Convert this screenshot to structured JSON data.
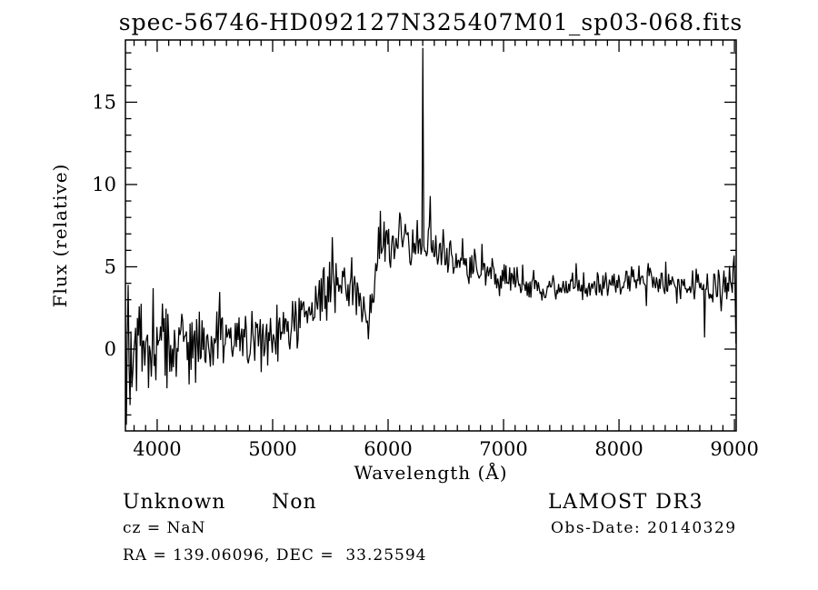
{
  "window": {
    "background_color": "#ffffff",
    "foreground_color": "#000000"
  },
  "footer": {
    "class_label": "Unknown",
    "subclass_label": "Non",
    "cz_value": "cz = NaN",
    "radec_value": "RA = 139.06096, DEC =  33.25594",
    "survey_label": "LAMOST DR3",
    "obs_date_value": "Obs-Date: 20140329"
  },
  "chart_data": {
    "type": "line",
    "title": "spec-56746-HD092127N325407M01_sp03-068.fits",
    "xlabel": "Wavelength (Å)",
    "ylabel": "Flux (relative)",
    "xlim": [
      3725,
      9015
    ],
    "ylim": [
      -4.97,
      18.78
    ],
    "grid": false,
    "legend": "none",
    "x_major_ticks": [
      4000,
      5000,
      6000,
      7000,
      8000,
      9000
    ],
    "x_tick_labels": [
      "4000",
      "5000",
      "6000",
      "7000",
      "8000",
      "9000"
    ],
    "x_minor_step": 100,
    "y_major_ticks": [
      0,
      5,
      10,
      15
    ],
    "y_tick_labels": [
      "0",
      "5",
      "10",
      "15"
    ],
    "y_minor_step": 1,
    "line_color": "#000000",
    "frame_color": "#000000",
    "series": [
      {
        "name": "spectrum-flux",
        "sample_step_angstrom": 8,
        "noise_seed": 42,
        "continuum_anchors": [
          [
            3725,
            0.2
          ],
          [
            3800,
            0.2
          ],
          [
            3900,
            0.25
          ],
          [
            4000,
            0.25
          ],
          [
            4100,
            0.3
          ],
          [
            4200,
            0.1
          ],
          [
            4300,
            0.15
          ],
          [
            4400,
            0.2
          ],
          [
            4500,
            0.3
          ],
          [
            4600,
            0.4
          ],
          [
            4700,
            0.5
          ],
          [
            4800,
            0.6
          ],
          [
            4900,
            0.7
          ],
          [
            5000,
            0.85
          ],
          [
            5100,
            1.1
          ],
          [
            5200,
            1.5
          ],
          [
            5300,
            2.0
          ],
          [
            5400,
            2.8
          ],
          [
            5450,
            3.3
          ],
          [
            5500,
            4.0
          ],
          [
            5560,
            4.3
          ],
          [
            5620,
            4.1
          ],
          [
            5680,
            3.9
          ],
          [
            5730,
            3.5
          ],
          [
            5780,
            3.0
          ],
          [
            5810,
            2.4
          ],
          [
            5830,
            1.5
          ],
          [
            5860,
            2.8
          ],
          [
            5900,
            4.8
          ],
          [
            5930,
            6.3
          ],
          [
            5960,
            6.8
          ],
          [
            6000,
            6.6
          ],
          [
            6050,
            6.4
          ],
          [
            6100,
            6.8
          ],
          [
            6150,
            6.5
          ],
          [
            6200,
            6.4
          ],
          [
            6250,
            6.3
          ],
          [
            6300,
            6.4
          ],
          [
            6350,
            6.2
          ],
          [
            6400,
            6.0
          ],
          [
            6450,
            5.8
          ],
          [
            6500,
            5.6
          ],
          [
            6550,
            5.8
          ],
          [
            6600,
            5.6
          ],
          [
            6650,
            5.3
          ],
          [
            6700,
            5.1
          ],
          [
            6800,
            4.8
          ],
          [
            6900,
            4.6
          ],
          [
            7000,
            4.4
          ],
          [
            7100,
            4.1
          ],
          [
            7200,
            3.95
          ],
          [
            7300,
            3.85
          ],
          [
            7400,
            3.75
          ],
          [
            7500,
            3.7
          ],
          [
            7600,
            3.8
          ],
          [
            7700,
            3.9
          ],
          [
            7800,
            3.85
          ],
          [
            7900,
            3.9
          ],
          [
            8000,
            4.0
          ],
          [
            8100,
            4.1
          ],
          [
            8200,
            4.2
          ],
          [
            8300,
            4.05
          ],
          [
            8400,
            3.9
          ],
          [
            8500,
            4.0
          ],
          [
            8600,
            3.85
          ],
          [
            8700,
            3.8
          ],
          [
            8800,
            3.7
          ],
          [
            8900,
            3.9
          ],
          [
            8950,
            4.1
          ],
          [
            9000,
            4.3
          ],
          [
            9015,
            4.0
          ]
        ],
        "noise_sigma_anchors": [
          [
            3725,
            1.7
          ],
          [
            3850,
            1.5
          ],
          [
            4000,
            1.3
          ],
          [
            4200,
            1.15
          ],
          [
            4500,
            1.05
          ],
          [
            4800,
            0.95
          ],
          [
            5100,
            0.85
          ],
          [
            5400,
            0.8
          ],
          [
            5700,
            0.75
          ],
          [
            6000,
            0.75
          ],
          [
            6300,
            0.65
          ],
          [
            6600,
            0.55
          ],
          [
            6900,
            0.5
          ],
          [
            7200,
            0.45
          ],
          [
            7600,
            0.42
          ],
          [
            8000,
            0.45
          ],
          [
            8400,
            0.5
          ],
          [
            8700,
            0.55
          ],
          [
            8900,
            0.7
          ],
          [
            9015,
            0.85
          ]
        ],
        "spike_points": [
          [
            3729,
            -4.6
          ],
          [
            3745,
            3.9
          ],
          [
            3765,
            -3.4
          ],
          [
            3963,
            3.7
          ],
          [
            5513,
            6.8
          ],
          [
            5827,
            0.6
          ],
          [
            5936,
            8.4
          ],
          [
            6103,
            8.3
          ],
          [
            6300,
            18.3
          ],
          [
            6364,
            9.3
          ],
          [
            8740,
            0.7
          ],
          [
            8883,
            2.3
          ],
          [
            8988,
            5.1
          ],
          [
            9013,
            0.35
          ]
        ]
      }
    ]
  }
}
